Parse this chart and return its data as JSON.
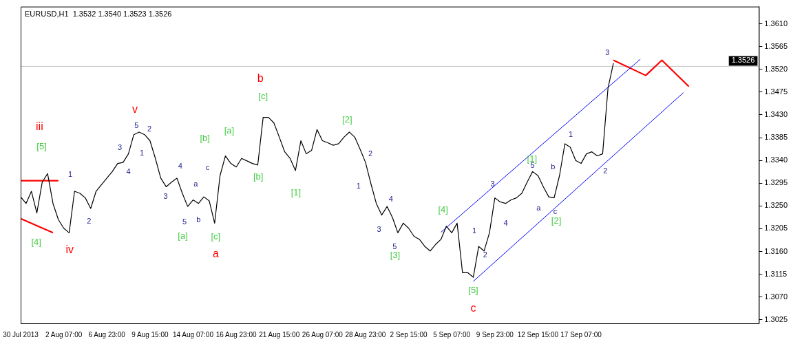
{
  "chart_data": {
    "type": "line",
    "title": "EURUSD,H1  1.3532 1.3540 1.3523 1.3526",
    "categories": [
      "30 Jul 2013",
      null,
      null,
      null,
      null,
      null,
      null,
      null,
      "2 Aug 07:00",
      null,
      null,
      null,
      null,
      null,
      null,
      null,
      "6 Aug 23:00",
      null,
      null,
      null,
      null,
      null,
      null,
      null,
      "9 Aug 15:00",
      null,
      null,
      null,
      null,
      null,
      null,
      null,
      "14 Aug 07:00",
      null,
      null,
      null,
      null,
      null,
      null,
      null,
      "16 Aug 23:00",
      null,
      null,
      null,
      null,
      null,
      null,
      null,
      "21 Aug 15:00",
      null,
      null,
      null,
      null,
      null,
      null,
      null,
      "26 Aug 07:00",
      null,
      null,
      null,
      null,
      null,
      null,
      null,
      "28 Aug 23:00",
      null,
      null,
      null,
      null,
      null,
      null,
      null,
      "2 Sep 15:00",
      null,
      null,
      null,
      null,
      null,
      null,
      null,
      "5 Sep 07:00",
      null,
      null,
      null,
      null,
      null,
      null,
      null,
      "9 Sep 23:00",
      null,
      null,
      null,
      null,
      null,
      null,
      null,
      "12 Sep 15:00",
      null,
      null,
      null,
      null,
      null,
      null,
      null,
      "17 Sep 07:00",
      null,
      null,
      null,
      null,
      null,
      null,
      null,
      null,
      null,
      null,
      null,
      null,
      null,
      null,
      null,
      null,
      null,
      null,
      null,
      null,
      null,
      null,
      null,
      null,
      null,
      null,
      null,
      null,
      null,
      null,
      null,
      null,
      null
    ],
    "ylim": [
      1.3018,
      1.3644
    ],
    "yticks": [
      1.3025,
      {
        "value": 1.307,
        "label": "1.3070"
      },
      1.3115,
      {
        "value": 1.316,
        "label": "1.3160"
      },
      1.3205,
      {
        "value": 1.325,
        "label": "1.3250"
      },
      1.3295,
      {
        "value": 1.334,
        "label": "1.3340"
      },
      1.3385,
      {
        "value": 1.343,
        "label": "1.3430"
      },
      1.3475,
      {
        "value": 1.352,
        "label": "1.3520"
      },
      1.3565,
      {
        "value": 1.361,
        "label": "1.3610"
      }
    ],
    "grid": false,
    "legend": false,
    "line_style": "solid",
    "ref_lines": [
      {
        "axis": "y",
        "value": 1.3526,
        "label": "1.3526",
        "color": "#c0c0c0"
      }
    ],
    "annotations": [
      "iii",
      "iv",
      "v",
      "a",
      "b",
      "c",
      "[4]",
      "[5]",
      "[a]",
      "[b]",
      "[c]",
      "[a]",
      "[b]",
      "[c]",
      "[1]",
      "[2]",
      "[3]",
      "[4]",
      "[5]",
      "[1]",
      "[2]",
      "1",
      "2",
      "3",
      "4",
      "5",
      "1",
      "2",
      "3",
      "4",
      "5",
      "a",
      "b",
      "c",
      "1",
      "2",
      "3",
      "4",
      "5",
      "1",
      "2",
      "3",
      "4",
      "5",
      "a",
      "b",
      "c",
      "1",
      "2",
      "3"
    ],
    "series": [
      {
        "color": "#000000",
        "values": [
          1.3268,
          1.3255,
          1.3279,
          1.3236,
          1.3297,
          1.3314,
          1.3255,
          1.3223,
          1.3206,
          1.3197,
          1.3279,
          1.3275,
          1.3266,
          1.3245,
          1.3279,
          1.3292,
          1.3305,
          1.3318,
          1.3334,
          1.3336,
          1.3353,
          1.3391,
          1.3396,
          1.3391,
          1.3379,
          1.3344,
          1.3305,
          1.3288,
          1.3297,
          1.3305,
          1.3275,
          1.3249,
          1.3262,
          1.3255,
          1.3268,
          1.326,
          1.3216,
          1.331,
          1.3349,
          1.3334,
          1.3327,
          1.3344,
          1.3339,
          1.3334,
          1.3331,
          1.3425,
          1.3425,
          1.3414,
          1.3386,
          1.3357,
          1.3344,
          1.332,
          1.3379,
          1.3353,
          1.336,
          1.3401,
          1.3379,
          1.3375,
          1.337,
          1.3373,
          1.3386,
          1.3396,
          1.3386,
          1.3362,
          1.3336,
          1.3294,
          1.3255,
          1.3232,
          1.3249,
          1.3227,
          1.3197,
          1.3216,
          1.3206,
          1.319,
          1.3184,
          1.317,
          1.3161,
          1.3174,
          1.3184,
          1.321,
          1.3197,
          1.3216,
          1.3118,
          1.3118,
          1.3109,
          1.317,
          1.3161,
          1.3197,
          1.3266,
          1.3258,
          1.3255,
          1.3262,
          1.3266,
          1.3275,
          1.3297,
          1.3318,
          1.331,
          1.3288,
          1.3268,
          1.3266,
          1.331,
          1.3373,
          1.3366,
          1.334,
          1.3334,
          1.3353,
          1.3357,
          1.3349,
          1.3353,
          1.3483,
          1.3532,
          null,
          null,
          null,
          null,
          null,
          null,
          null,
          null,
          null,
          null,
          null,
          null,
          null,
          null,
          null,
          null,
          null,
          null,
          null,
          null,
          null,
          null,
          null,
          null,
          null,
          null,
          null
        ]
      },
      {
        "color": "#ff0000",
        "values": [
          1.33,
          null,
          null,
          null,
          null,
          null,
          null,
          1.33,
          null,
          null,
          null,
          null,
          null,
          null,
          null,
          null,
          null,
          null,
          null,
          null,
          null,
          null,
          null,
          null,
          null,
          null,
          null,
          null,
          null,
          null,
          null,
          null,
          null,
          null,
          null,
          null,
          null,
          null,
          null,
          null,
          null,
          null,
          null,
          null,
          null,
          null,
          null,
          null,
          null,
          null,
          null,
          null,
          null,
          null,
          null,
          null,
          null,
          null,
          null,
          null,
          null,
          null,
          null,
          null,
          null,
          null,
          null,
          null,
          null,
          null,
          null,
          null,
          null,
          null,
          null,
          null,
          null,
          null,
          null,
          null,
          null,
          null,
          null,
          null,
          null,
          null,
          null,
          null,
          null,
          null,
          null,
          null,
          null,
          null,
          null,
          null,
          null,
          null,
          null,
          null,
          null,
          null,
          null,
          null,
          null,
          null,
          null,
          null,
          null,
          null,
          null,
          null,
          null,
          null,
          null,
          null,
          null,
          null,
          null,
          null,
          null,
          null,
          null,
          null,
          null,
          null,
          null,
          null,
          null,
          null,
          null,
          null,
          null,
          null,
          null,
          null,
          null,
          null
        ]
      },
      {
        "color": "#ff0000",
        "values": [
          1.3225,
          null,
          null,
          null,
          null,
          null,
          1.3197,
          null,
          null,
          null,
          null,
          null,
          null,
          null,
          null,
          null,
          null,
          null,
          null,
          null,
          null,
          null,
          null,
          null,
          null,
          null,
          null,
          null,
          null,
          null,
          null,
          null,
          null,
          null,
          null,
          null,
          null,
          null,
          null,
          null,
          null,
          null,
          null,
          null,
          null,
          null,
          null,
          null,
          null,
          null,
          null,
          null,
          null,
          null,
          null,
          null,
          null,
          null,
          null,
          null,
          null,
          null,
          null,
          null,
          null,
          null,
          null,
          null,
          null,
          null,
          null,
          null,
          null,
          null,
          null,
          null,
          null,
          null,
          null,
          null,
          null,
          null,
          null,
          null,
          null,
          null,
          null,
          null,
          null,
          null,
          null,
          null,
          null,
          null,
          null,
          null,
          null,
          null,
          null,
          null,
          null,
          null,
          null,
          null,
          null,
          null,
          null,
          null,
          null,
          null,
          null,
          null,
          null,
          null,
          null,
          null,
          null,
          null,
          null,
          null,
          null,
          null,
          null,
          null,
          null,
          null,
          null,
          null,
          null,
          null,
          null,
          null,
          null,
          null,
          null,
          null,
          null,
          null
        ]
      },
      {
        "color": "#0000ff",
        "values": [
          null,
          null,
          null,
          null,
          null,
          null,
          null,
          null,
          null,
          null,
          null,
          null,
          null,
          null,
          null,
          null,
          null,
          null,
          null,
          null,
          null,
          null,
          null,
          null,
          null,
          null,
          null,
          null,
          null,
          null,
          null,
          null,
          null,
          null,
          null,
          null,
          null,
          null,
          null,
          null,
          null,
          null,
          null,
          null,
          null,
          null,
          null,
          null,
          null,
          null,
          null,
          null,
          null,
          null,
          null,
          null,
          null,
          null,
          null,
          null,
          null,
          null,
          null,
          null,
          null,
          null,
          null,
          null,
          null,
          null,
          null,
          null,
          null,
          null,
          null,
          null,
          null,
          null,
          1.3198,
          null,
          null,
          null,
          null,
          null,
          null,
          null,
          null,
          null,
          null,
          null,
          null,
          null,
          null,
          null,
          null,
          null,
          null,
          null,
          null,
          null,
          null,
          null,
          null,
          null,
          null,
          null,
          null,
          null,
          null,
          null,
          null,
          null,
          null,
          null,
          null,
          1.354,
          null,
          null,
          null,
          null,
          null,
          null,
          null,
          null,
          null,
          null,
          null,
          null,
          null,
          null,
          null,
          null,
          null,
          null,
          null,
          null,
          null,
          null
        ]
      },
      {
        "color": "#0000ff",
        "values": [
          null,
          null,
          null,
          null,
          null,
          null,
          null,
          null,
          null,
          null,
          null,
          null,
          null,
          null,
          null,
          null,
          null,
          null,
          null,
          null,
          null,
          null,
          null,
          null,
          null,
          null,
          null,
          null,
          null,
          null,
          null,
          null,
          null,
          null,
          null,
          null,
          null,
          null,
          null,
          null,
          null,
          null,
          null,
          null,
          null,
          null,
          null,
          null,
          null,
          null,
          null,
          null,
          null,
          null,
          null,
          null,
          null,
          null,
          null,
          null,
          null,
          null,
          null,
          null,
          null,
          null,
          null,
          null,
          null,
          null,
          null,
          null,
          null,
          null,
          null,
          null,
          null,
          null,
          null,
          null,
          null,
          null,
          null,
          null,
          1.3101,
          null,
          null,
          null,
          null,
          null,
          null,
          null,
          null,
          null,
          null,
          null,
          null,
          null,
          null,
          null,
          null,
          null,
          null,
          null,
          null,
          null,
          null,
          null,
          null,
          null,
          null,
          null,
          null,
          null,
          null,
          null,
          null,
          null,
          null,
          null,
          null,
          null,
          null,
          1.3474,
          null,
          null,
          null,
          null,
          null,
          null,
          null,
          null,
          null,
          null,
          null,
          null,
          null,
          null
        ]
      },
      {
        "color": "#ff0000",
        "values": [
          null,
          null,
          null,
          null,
          null,
          null,
          null,
          null,
          null,
          null,
          null,
          null,
          null,
          null,
          null,
          null,
          null,
          null,
          null,
          null,
          null,
          null,
          null,
          null,
          null,
          null,
          null,
          null,
          null,
          null,
          null,
          null,
          null,
          null,
          null,
          null,
          null,
          null,
          null,
          null,
          null,
          null,
          null,
          null,
          null,
          null,
          null,
          null,
          null,
          null,
          null,
          null,
          null,
          null,
          null,
          null,
          null,
          null,
          null,
          null,
          null,
          null,
          null,
          null,
          null,
          null,
          null,
          null,
          null,
          null,
          null,
          null,
          null,
          null,
          null,
          null,
          null,
          null,
          null,
          null,
          null,
          null,
          null,
          null,
          null,
          null,
          null,
          null,
          null,
          null,
          null,
          null,
          null,
          null,
          null,
          null,
          null,
          null,
          null,
          null,
          null,
          null,
          null,
          null,
          null,
          null,
          null,
          null,
          null,
          null,
          1.3538,
          null,
          null,
          null,
          null,
          null,
          1.3508,
          null,
          null,
          1.3538,
          null,
          null,
          null,
          null,
          1.3486,
          null,
          null,
          null,
          null,
          null,
          null,
          null,
          null,
          null,
          null,
          null,
          null,
          null
        ]
      }
    ]
  }
}
